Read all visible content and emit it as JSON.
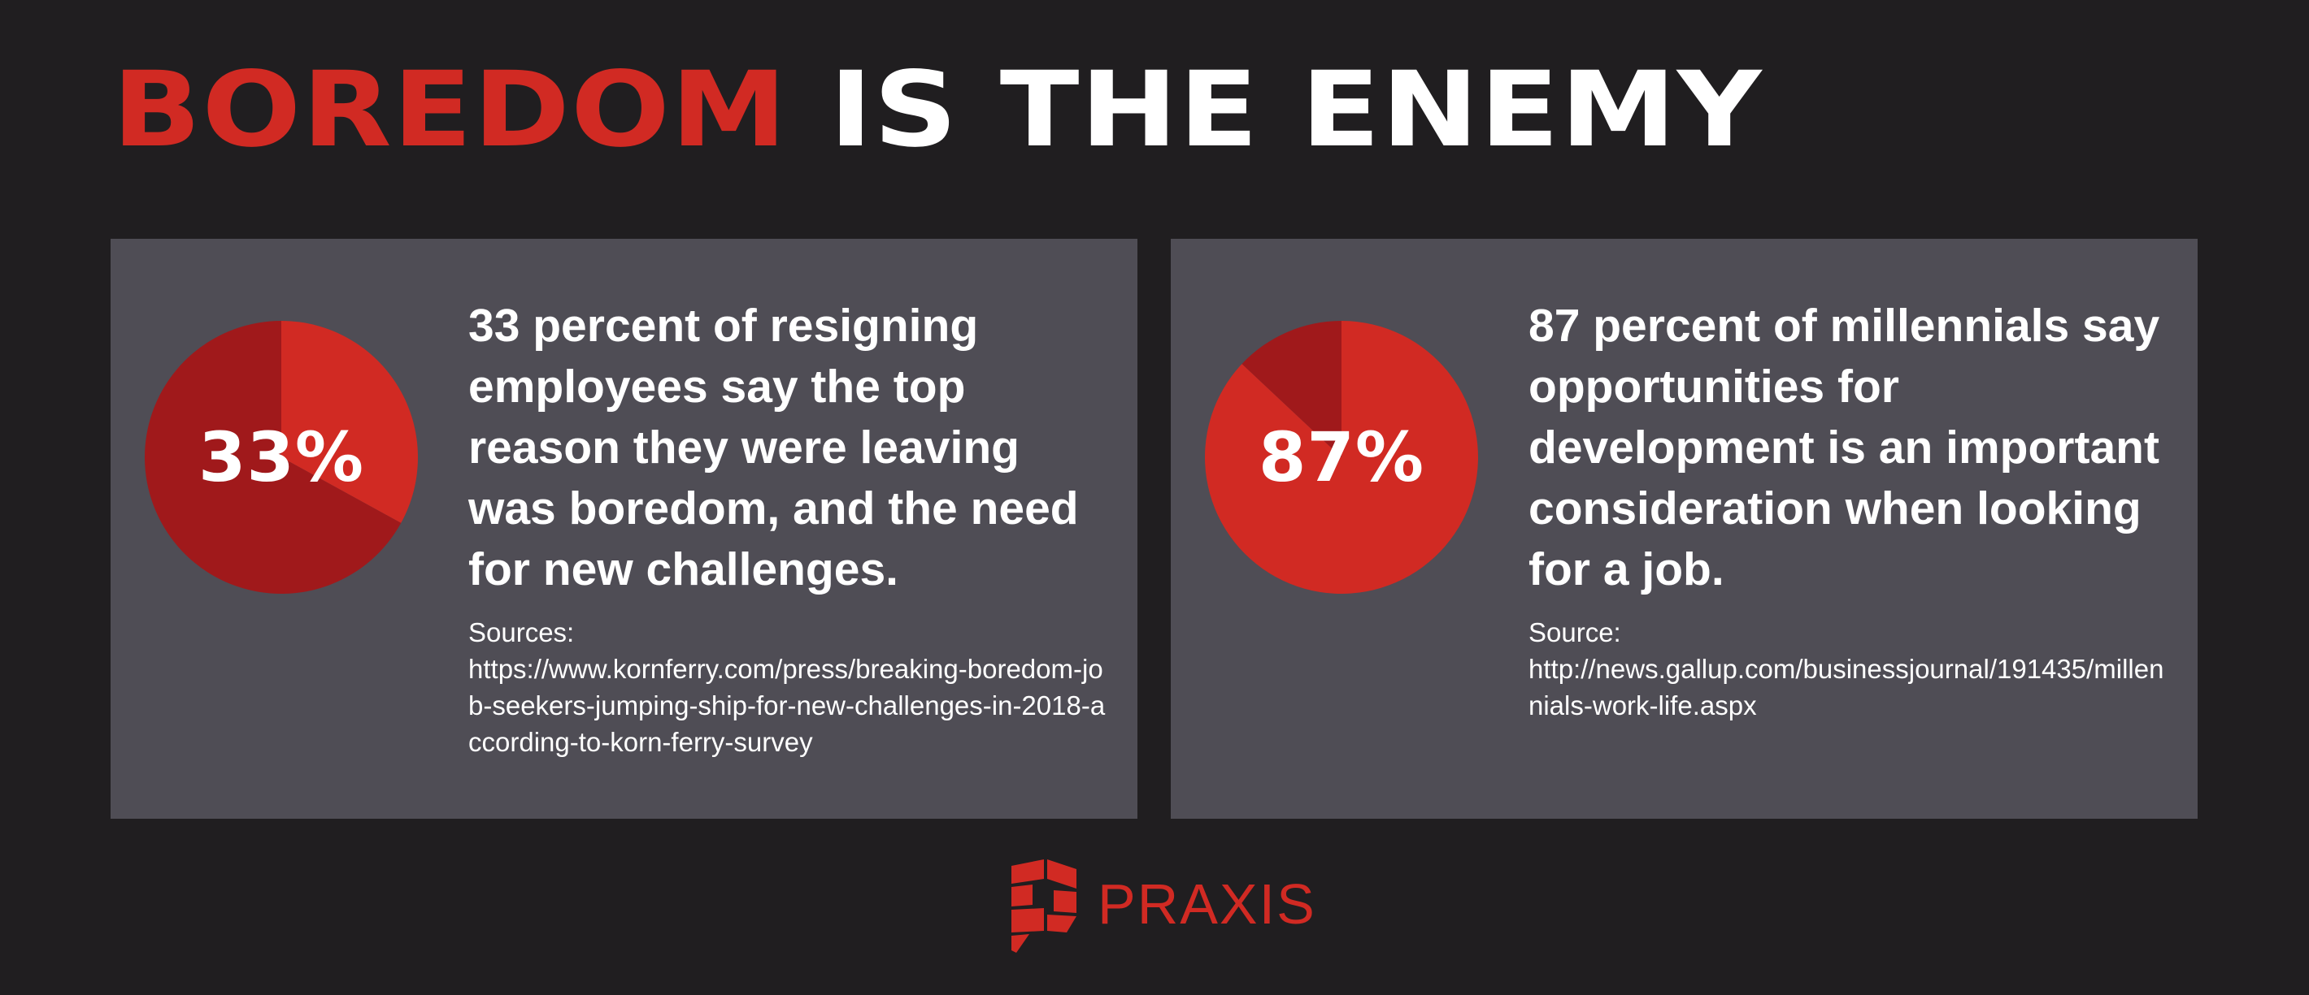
{
  "title": {
    "highlight": "BOREDOM",
    "rest": "IS THE ENEMY"
  },
  "colors": {
    "background": "#201e20",
    "card": "#4f4d55",
    "accent": "#d12a23",
    "dark_red": "#a0191b",
    "text": "#ffffff"
  },
  "chart_data": [
    {
      "type": "pie",
      "label": "33%",
      "values": [
        33,
        67
      ],
      "colors": [
        "#d12a23",
        "#a0191b"
      ]
    },
    {
      "type": "pie",
      "label": "87%",
      "values": [
        87,
        13
      ],
      "colors": [
        "#d12a23",
        "#a0191b"
      ]
    }
  ],
  "cards": [
    {
      "headline": "33 percent of resigning employees say the top reason they were leaving was boredom, and the need for new challenges.",
      "source_label": "Sources:",
      "source_url": "https://www.kornferry.com/press/breaking-boredom-job-seekers-jumping-ship-for-new-challenges-in-2018-according-to-korn-ferry-survey"
    },
    {
      "headline": "87 percent of millennials say opportunities for development is an important consideration when looking for a job.",
      "source_label": "Source:",
      "source_url": "http://news.gallup.com/businessjournal/191435/millennials-work-life.aspx"
    }
  ],
  "logo": {
    "icon": "praxis-p-logo-icon",
    "text": "PRAXIS"
  }
}
